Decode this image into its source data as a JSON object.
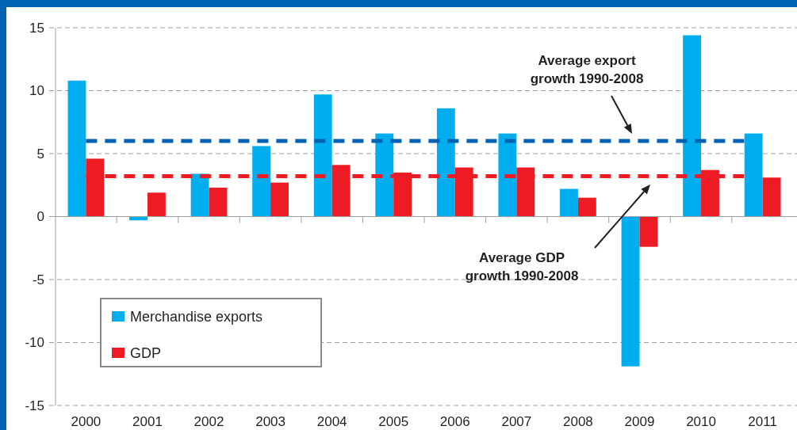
{
  "chart_data": {
    "type": "bar",
    "categories": [
      "2000",
      "2001",
      "2002",
      "2003",
      "2004",
      "2005",
      "2006",
      "2007",
      "2008",
      "2009",
      "2010",
      "2011"
    ],
    "series": [
      {
        "name": "Merchandise exports",
        "color": "#00aeef",
        "values": [
          10.8,
          -0.3,
          3.4,
          5.6,
          9.7,
          6.6,
          8.6,
          6.6,
          2.2,
          -11.9,
          14.4,
          6.6
        ]
      },
      {
        "name": "GDP",
        "color": "#ed1c24",
        "values": [
          4.6,
          1.9,
          2.3,
          2.7,
          4.1,
          3.5,
          3.9,
          3.9,
          1.5,
          -2.4,
          3.7,
          3.1
        ]
      }
    ],
    "ylim": [
      -15,
      15
    ],
    "yticks": [
      -15,
      -10,
      -5,
      0,
      5,
      10,
      15
    ],
    "grid": "y",
    "legend": "bottom left",
    "ref_lines": [
      {
        "axis": "y",
        "value": 6,
        "color": "#0063b1",
        "line_style": "dashed"
      },
      {
        "axis": "y",
        "value": 3.2,
        "color": "#ed1c24",
        "line_style": "dashed"
      }
    ],
    "annotations": [
      "Average export\ngrowth 1990-2008",
      "Average GDP\ngrowth 1990-2008"
    ]
  }
}
